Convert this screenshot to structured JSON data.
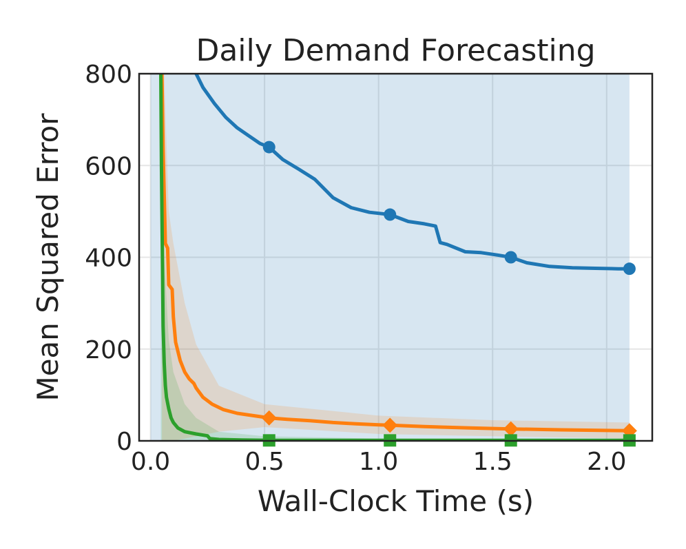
{
  "chart_data": {
    "type": "line",
    "title": "Daily Demand Forecasting",
    "xlabel": "Wall-Clock Time (s)",
    "ylabel": "Mean Squared Error",
    "xlim": [
      -0.05,
      2.2
    ],
    "ylim": [
      0,
      800
    ],
    "xticks": [
      0.0,
      0.5,
      1.0,
      1.5,
      2.0
    ],
    "xtick_labels": [
      "0.0",
      "0.5",
      "1.0",
      "1.5",
      "2.0"
    ],
    "yticks": [
      0,
      200,
      400,
      600,
      800
    ],
    "ytick_labels": [
      "0",
      "200",
      "400",
      "600",
      "800"
    ],
    "grid": true,
    "series": [
      {
        "color": "#1f77b4",
        "marker": "circle",
        "x": [
          0.2,
          0.23,
          0.28,
          0.33,
          0.38,
          0.43,
          0.48,
          0.52,
          0.58,
          0.65,
          0.72,
          0.8,
          0.88,
          0.96,
          1.05,
          1.13,
          1.2,
          1.25,
          1.27,
          1.3,
          1.38,
          1.45,
          1.52,
          1.58,
          1.65,
          1.75,
          1.85,
          1.95,
          2.05,
          2.1
        ],
        "y": [
          800,
          770,
          735,
          705,
          682,
          665,
          648,
          640,
          613,
          592,
          570,
          530,
          508,
          498,
          493,
          478,
          473,
          468,
          432,
          428,
          412,
          410,
          405,
          400,
          388,
          380,
          377,
          376,
          375,
          375
        ],
        "markers_x": [
          0.52,
          1.05,
          1.58,
          2.1
        ],
        "markers_y": [
          640,
          493,
          400,
          375
        ],
        "band_x": [
          0.0,
          2.1
        ],
        "band_lower": [
          0,
          0
        ],
        "band_upper": [
          800,
          800
        ]
      },
      {
        "color": "#ff7f0e",
        "marker": "diamond",
        "x": [
          0.05,
          0.055,
          0.065,
          0.075,
          0.08,
          0.095,
          0.1,
          0.11,
          0.13,
          0.15,
          0.17,
          0.19,
          0.2,
          0.23,
          0.27,
          0.32,
          0.38,
          0.45,
          0.52,
          0.6,
          0.7,
          0.8,
          0.9,
          1.0,
          1.05,
          1.2,
          1.4,
          1.58,
          1.8,
          2.1
        ],
        "y": [
          800,
          640,
          430,
          420,
          340,
          330,
          270,
          215,
          175,
          150,
          135,
          125,
          115,
          95,
          80,
          68,
          60,
          55,
          50,
          47,
          44,
          40,
          37,
          35,
          34,
          31,
          28,
          26,
          24,
          22
        ],
        "markers_x": [
          0.52,
          1.05,
          1.58,
          2.1
        ],
        "markers_y": [
          50,
          34,
          26,
          22
        ],
        "band_x": [
          0.05,
          0.06,
          0.08,
          0.1,
          0.15,
          0.2,
          0.3,
          0.5,
          1.0,
          1.5,
          2.1
        ],
        "band_lower": [
          0,
          0,
          0,
          0,
          5,
          10,
          20,
          30,
          15,
          10,
          5
        ],
        "band_upper": [
          800,
          800,
          500,
          430,
          300,
          210,
          120,
          80,
          55,
          45,
          40
        ]
      },
      {
        "color": "#2ca02c",
        "marker": "square",
        "x": [
          0.045,
          0.048,
          0.052,
          0.055,
          0.06,
          0.065,
          0.07,
          0.08,
          0.09,
          0.1,
          0.12,
          0.15,
          0.2,
          0.25,
          0.26,
          0.3,
          0.4,
          0.52,
          0.8,
          1.05,
          1.3,
          1.58,
          1.8,
          2.1
        ],
        "y": [
          800,
          600,
          400,
          250,
          170,
          120,
          95,
          70,
          50,
          40,
          28,
          20,
          15,
          11,
          5,
          3,
          2,
          1,
          1,
          1,
          1,
          1,
          1,
          1
        ],
        "markers_x": [
          0.52,
          1.05,
          1.58,
          2.1
        ],
        "markers_y": [
          1,
          1,
          1,
          1
        ],
        "band_x": [
          0.045,
          0.06,
          0.08,
          0.1,
          0.15,
          0.2,
          0.3,
          0.5,
          1.0,
          2.1
        ],
        "band_lower": [
          0,
          0,
          0,
          0,
          0,
          0,
          0,
          0,
          0,
          0
        ],
        "band_upper": [
          800,
          400,
          220,
          150,
          80,
          50,
          20,
          10,
          5,
          4
        ]
      }
    ]
  }
}
